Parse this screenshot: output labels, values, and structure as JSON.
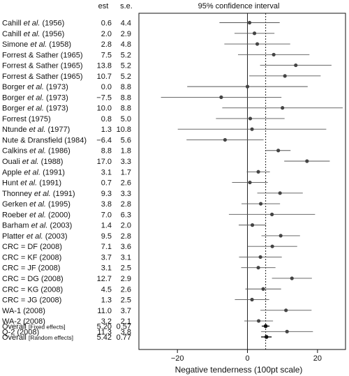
{
  "chart_data": {
    "type": "forest",
    "title": "95% confidence interval",
    "column_headers": {
      "est": "est",
      "se": "s.e."
    },
    "xlabel": "Negative tenderness (100pt scale)",
    "xlim": [
      -31,
      28
    ],
    "xticks": [
      -20,
      0,
      20
    ],
    "reference_lines": {
      "zero": 0,
      "pooled": 5.2
    },
    "studies": [
      {
        "label": [
          "Cahill ",
          "et al.",
          " (1956)"
        ],
        "est": "0.6",
        "se": "4.4",
        "value": 0.6,
        "ci": [
          -8.0,
          9.2
        ]
      },
      {
        "label": [
          "Cahill ",
          "et al.",
          " (1956)"
        ],
        "est": "2.0",
        "se": "2.9",
        "value": 2.0,
        "ci": [
          -3.7,
          7.7
        ]
      },
      {
        "label": [
          "Simone ",
          "et al.",
          " (1958)"
        ],
        "est": "2.8",
        "se": "4.8",
        "value": 2.8,
        "ci": [
          -6.6,
          12.2
        ]
      },
      {
        "label": [
          "Forrest & Sather (1965)"
        ],
        "est": "7.5",
        "se": "5.2",
        "value": 7.5,
        "ci": [
          -2.7,
          17.7
        ]
      },
      {
        "label": [
          "Forrest & Sather (1965)"
        ],
        "est": "13.8",
        "se": "5.2",
        "value": 13.8,
        "ci": [
          3.6,
          24.0
        ]
      },
      {
        "label": [
          "Forrest & Sather (1965)"
        ],
        "est": "10.7",
        "se": "5.2",
        "value": 10.7,
        "ci": [
          0.5,
          20.9
        ]
      },
      {
        "label": [
          "Borger ",
          "et al.",
          " (1973)"
        ],
        "est": "0.0",
        "se": "8.8",
        "value": 0.0,
        "ci": [
          -17.2,
          17.2
        ]
      },
      {
        "label": [
          "Borger ",
          "et al.",
          " (1973)"
        ],
        "est": "−7.5",
        "se": "8.8",
        "value": -7.5,
        "ci": [
          -24.7,
          9.7
        ]
      },
      {
        "label": [
          "Borger ",
          "et al.",
          " (1973)"
        ],
        "est": "10.0",
        "se": "8.8",
        "value": 10.0,
        "ci": [
          -7.2,
          27.2
        ]
      },
      {
        "label": [
          "Forrest (1975)"
        ],
        "est": "0.8",
        "se": "5.0",
        "value": 0.8,
        "ci": [
          -9.0,
          10.6
        ]
      },
      {
        "label": [
          "Ntunde ",
          "et al.",
          " (1977)"
        ],
        "est": "1.3",
        "se": "10.8",
        "value": 1.3,
        "ci": [
          -19.9,
          22.5
        ]
      },
      {
        "label": [
          "Nute & Dransfield (1984)"
        ],
        "est": "−6.4",
        "se": "5.6",
        "value": -6.4,
        "ci": [
          -17.4,
          4.6
        ]
      },
      {
        "label": [
          "Calkins ",
          "et al.",
          " (1986)"
        ],
        "est": "8.8",
        "se": "1.8",
        "value": 8.8,
        "ci": [
          5.3,
          12.3
        ]
      },
      {
        "label": [
          "Ouali ",
          "et al.",
          " (1988)"
        ],
        "est": "17.0",
        "se": "3.3",
        "value": 17.0,
        "ci": [
          10.5,
          23.5
        ]
      },
      {
        "label": [
          "Apple ",
          "et al.",
          " (1991)"
        ],
        "est": "3.1",
        "se": "1.7",
        "value": 3.1,
        "ci": [
          -0.2,
          6.4
        ]
      },
      {
        "label": [
          "Hunt ",
          "et al.",
          " (1991)"
        ],
        "est": "0.7",
        "se": "2.6",
        "value": 0.7,
        "ci": [
          -4.4,
          5.8
        ]
      },
      {
        "label": [
          "Thonney ",
          "et al.",
          " (1991)"
        ],
        "est": "9.3",
        "se": "3.3",
        "value": 9.3,
        "ci": [
          2.8,
          15.8
        ]
      },
      {
        "label": [
          "Gerken ",
          "et al.",
          " (1995)"
        ],
        "est": "3.8",
        "se": "2.8",
        "value": 3.8,
        "ci": [
          -1.7,
          9.3
        ]
      },
      {
        "label": [
          "Roeber ",
          "et al.",
          " (2000)"
        ],
        "est": "7.0",
        "se": "6.3",
        "value": 7.0,
        "ci": [
          -5.3,
          19.3
        ]
      },
      {
        "label": [
          "Barham ",
          "et al.",
          " (2003)"
        ],
        "est": "1.4",
        "se": "2.0",
        "value": 1.4,
        "ci": [
          -2.5,
          5.3
        ]
      },
      {
        "label": [
          "Platter ",
          "et al.",
          " (2003)"
        ],
        "est": "9.5",
        "se": "2.8",
        "value": 9.5,
        "ci": [
          4.0,
          15.0
        ]
      },
      {
        "label": [
          "CRC = DF (2008)"
        ],
        "est": "7.1",
        "se": "3.6",
        "value": 7.1,
        "ci": [
          0.0,
          14.2
        ]
      },
      {
        "label": [
          "CRC = KF (2008)"
        ],
        "est": "3.7",
        "se": "3.1",
        "value": 3.7,
        "ci": [
          -2.4,
          9.8
        ]
      },
      {
        "label": [
          "CRC = JF (2008)"
        ],
        "est": "3.1",
        "se": "2.5",
        "value": 3.1,
        "ci": [
          -1.8,
          8.0
        ]
      },
      {
        "label": [
          "CRC = DG (2008)"
        ],
        "est": "12.7",
        "se": "2.9",
        "value": 12.7,
        "ci": [
          7.0,
          18.4
        ]
      },
      {
        "label": [
          "CRC = KG (2008)"
        ],
        "est": "4.5",
        "se": "2.6",
        "value": 4.5,
        "ci": [
          -0.6,
          9.6
        ]
      },
      {
        "label": [
          "CRC = JG (2008)"
        ],
        "est": "1.3",
        "se": "2.5",
        "value": 1.3,
        "ci": [
          -3.6,
          6.2
        ]
      },
      {
        "label": [
          "WA-1 (2008)"
        ],
        "est": "11.0",
        "se": "3.7",
        "value": 11.0,
        "ci": [
          3.7,
          18.3
        ]
      },
      {
        "label": [
          "WA-2 (2008)"
        ],
        "est": "3.2",
        "se": "2.1",
        "value": 3.2,
        "ci": [
          -0.9,
          7.3
        ]
      },
      {
        "label": [
          "Q-2 (2008)"
        ],
        "est": "11.3",
        "se": "3.8",
        "value": 11.3,
        "ci": [
          3.9,
          18.7
        ]
      }
    ],
    "overall": [
      {
        "label": "Overall",
        "sublabel": "[Fixed effects]",
        "est": "5.20",
        "se": "0.57",
        "value": 5.2,
        "ci": [
          4.1,
          6.3
        ]
      },
      {
        "label": "Overall",
        "sublabel": "[Random effects]",
        "est": "5.42",
        "se": "0.77",
        "value": 5.42,
        "ci": [
          3.9,
          6.9
        ]
      }
    ]
  }
}
